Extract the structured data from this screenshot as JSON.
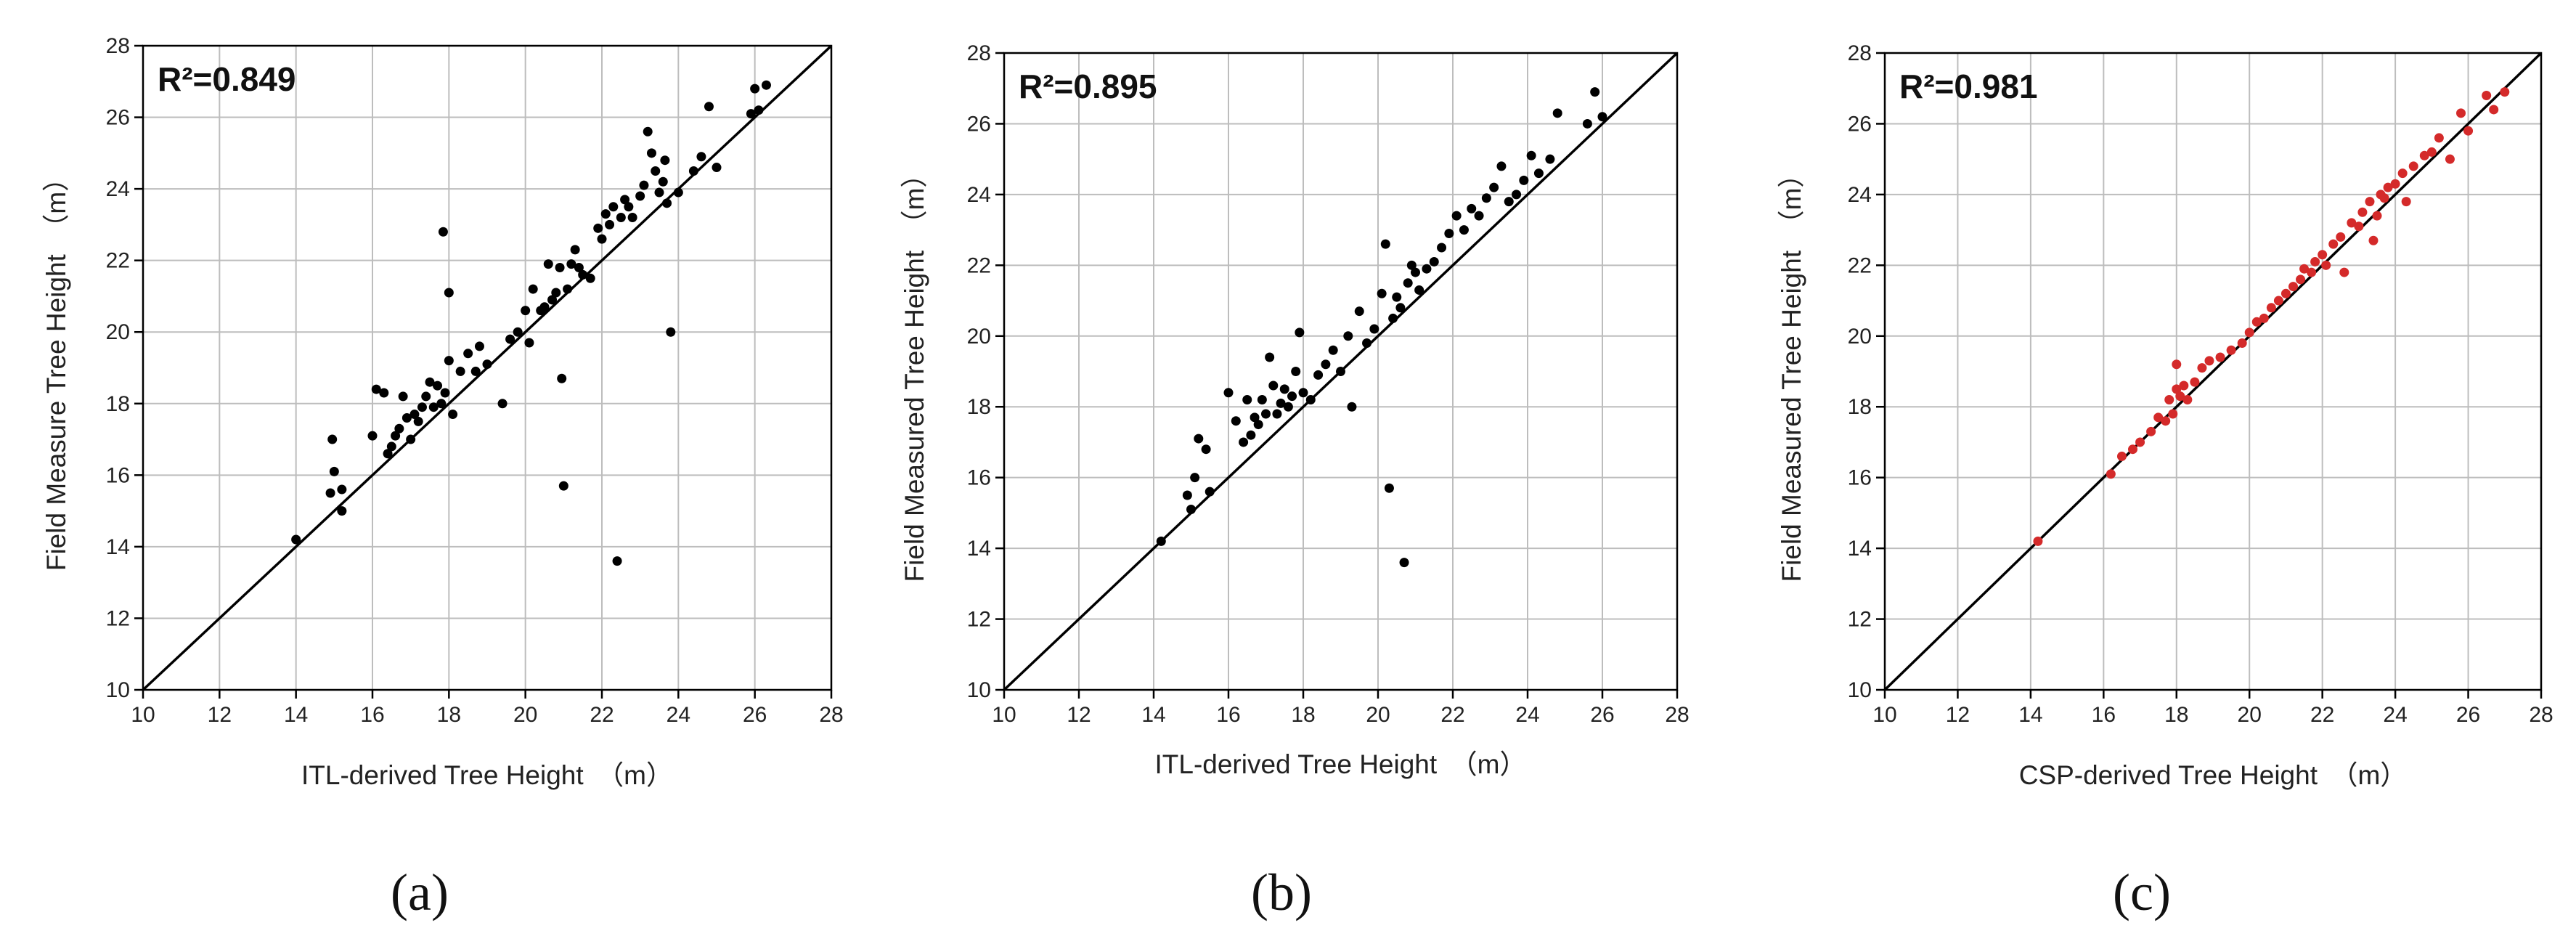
{
  "figure": {
    "panel_labels": [
      "(a)",
      "(b)",
      "(c)"
    ]
  },
  "chart_data": [
    {
      "type": "scatter",
      "panel": "(a)",
      "annotation": "R²=0.849",
      "xlabel": "ITL-derived Tree Height　（m）",
      "ylabel": "Field Measure Tree Height　（m）",
      "xlim": [
        10,
        28
      ],
      "ylim": [
        10,
        28
      ],
      "xticks": [
        "10",
        "12",
        "14",
        "16",
        "18",
        "20",
        "22",
        "24",
        "26",
        "28"
      ],
      "yticks": [
        "10",
        "12",
        "14",
        "16",
        "18",
        "20",
        "22",
        "24",
        "26",
        "28"
      ],
      "grid": true,
      "reference_line": "1:1",
      "marker_color": "#000000",
      "points": [
        [
          14.0,
          14.2
        ],
        [
          14.9,
          15.5
        ],
        [
          14.95,
          17.0
        ],
        [
          15.0,
          16.1
        ],
        [
          15.2,
          15.0
        ],
        [
          15.2,
          15.6
        ],
        [
          16.0,
          17.1
        ],
        [
          16.1,
          18.4
        ],
        [
          16.3,
          18.3
        ],
        [
          16.4,
          16.6
        ],
        [
          16.5,
          16.8
        ],
        [
          16.6,
          17.1
        ],
        [
          16.7,
          17.3
        ],
        [
          16.8,
          18.2
        ],
        [
          16.9,
          17.6
        ],
        [
          17.0,
          17.0
        ],
        [
          17.1,
          17.7
        ],
        [
          17.2,
          17.5
        ],
        [
          17.3,
          17.9
        ],
        [
          17.4,
          18.2
        ],
        [
          17.5,
          18.6
        ],
        [
          17.6,
          17.9
        ],
        [
          17.7,
          18.5
        ],
        [
          17.8,
          18.0
        ],
        [
          17.85,
          22.8
        ],
        [
          17.9,
          18.3
        ],
        [
          18.0,
          21.1
        ],
        [
          18.0,
          19.2
        ],
        [
          18.1,
          17.7
        ],
        [
          18.3,
          18.9
        ],
        [
          18.5,
          19.4
        ],
        [
          18.7,
          18.9
        ],
        [
          18.8,
          19.6
        ],
        [
          19.0,
          19.1
        ],
        [
          19.4,
          18.0
        ],
        [
          19.6,
          19.8
        ],
        [
          19.8,
          20.0
        ],
        [
          20.0,
          20.6
        ],
        [
          20.1,
          19.7
        ],
        [
          20.2,
          21.2
        ],
        [
          20.4,
          20.6
        ],
        [
          20.5,
          20.7
        ],
        [
          20.6,
          21.9
        ],
        [
          20.7,
          20.9
        ],
        [
          20.8,
          21.1
        ],
        [
          20.9,
          21.8
        ],
        [
          20.95,
          18.7
        ],
        [
          21.0,
          15.7
        ],
        [
          21.1,
          21.2
        ],
        [
          21.2,
          21.9
        ],
        [
          21.3,
          22.3
        ],
        [
          21.4,
          21.8
        ],
        [
          21.5,
          21.6
        ],
        [
          21.7,
          21.5
        ],
        [
          21.9,
          22.9
        ],
        [
          22.0,
          22.6
        ],
        [
          22.1,
          23.3
        ],
        [
          22.2,
          23.0
        ],
        [
          22.3,
          23.5
        ],
        [
          22.4,
          13.6
        ],
        [
          22.5,
          23.2
        ],
        [
          22.6,
          23.7
        ],
        [
          22.7,
          23.5
        ],
        [
          22.8,
          23.2
        ],
        [
          23.0,
          23.8
        ],
        [
          23.1,
          24.1
        ],
        [
          23.2,
          25.6
        ],
        [
          23.3,
          25.0
        ],
        [
          23.4,
          24.5
        ],
        [
          23.5,
          23.9
        ],
        [
          23.6,
          24.2
        ],
        [
          23.65,
          24.8
        ],
        [
          23.7,
          23.6
        ],
        [
          23.8,
          20.0
        ],
        [
          24.0,
          23.9
        ],
        [
          24.4,
          24.5
        ],
        [
          24.6,
          24.9
        ],
        [
          24.8,
          26.3
        ],
        [
          25.0,
          24.6
        ],
        [
          25.9,
          26.1
        ],
        [
          26.0,
          26.8
        ],
        [
          26.1,
          26.2
        ],
        [
          26.3,
          26.9
        ]
      ]
    },
    {
      "type": "scatter",
      "panel": "(b)",
      "annotation": "R²=0.895",
      "xlabel": "ITL-derived Tree Height　（m）",
      "ylabel": "Field Measured Tree Height　（m）",
      "xlim": [
        10,
        28
      ],
      "ylim": [
        10,
        28
      ],
      "xticks": [
        "10",
        "12",
        "14",
        "16",
        "18",
        "20",
        "22",
        "24",
        "26",
        "28"
      ],
      "yticks": [
        "10",
        "12",
        "14",
        "16",
        "18",
        "20",
        "22",
        "24",
        "26",
        "28"
      ],
      "grid": true,
      "reference_line": "1:1",
      "marker_color": "#000000",
      "points": [
        [
          14.2,
          14.2
        ],
        [
          14.9,
          15.5
        ],
        [
          15.0,
          15.1
        ],
        [
          15.1,
          16.0
        ],
        [
          15.2,
          17.1
        ],
        [
          15.4,
          16.8
        ],
        [
          15.5,
          15.6
        ],
        [
          16.0,
          18.4
        ],
        [
          16.2,
          17.6
        ],
        [
          16.4,
          17.0
        ],
        [
          16.5,
          18.2
        ],
        [
          16.6,
          17.2
        ],
        [
          16.7,
          17.7
        ],
        [
          16.8,
          17.5
        ],
        [
          16.9,
          18.2
        ],
        [
          17.0,
          17.8
        ],
        [
          17.1,
          19.4
        ],
        [
          17.2,
          18.6
        ],
        [
          17.3,
          17.8
        ],
        [
          17.4,
          18.1
        ],
        [
          17.5,
          18.5
        ],
        [
          17.6,
          18.0
        ],
        [
          17.7,
          18.3
        ],
        [
          17.8,
          19.0
        ],
        [
          17.9,
          20.1
        ],
        [
          18.0,
          18.4
        ],
        [
          18.2,
          18.2
        ],
        [
          18.4,
          18.9
        ],
        [
          18.6,
          19.2
        ],
        [
          18.8,
          19.6
        ],
        [
          19.0,
          19.0
        ],
        [
          19.2,
          20.0
        ],
        [
          19.3,
          18.0
        ],
        [
          19.5,
          20.7
        ],
        [
          19.7,
          19.8
        ],
        [
          19.9,
          20.2
        ],
        [
          20.1,
          21.2
        ],
        [
          20.2,
          22.6
        ],
        [
          20.3,
          15.7
        ],
        [
          20.4,
          20.5
        ],
        [
          20.5,
          21.1
        ],
        [
          20.6,
          20.8
        ],
        [
          20.7,
          13.6
        ],
        [
          20.8,
          21.5
        ],
        [
          20.9,
          22.0
        ],
        [
          21.0,
          21.8
        ],
        [
          21.1,
          21.3
        ],
        [
          21.3,
          21.9
        ],
        [
          21.5,
          22.1
        ],
        [
          21.7,
          22.5
        ],
        [
          21.9,
          22.9
        ],
        [
          22.1,
          23.4
        ],
        [
          22.3,
          23.0
        ],
        [
          22.5,
          23.6
        ],
        [
          22.7,
          23.4
        ],
        [
          22.9,
          23.9
        ],
        [
          23.1,
          24.2
        ],
        [
          23.3,
          24.8
        ],
        [
          23.5,
          23.8
        ],
        [
          23.7,
          24.0
        ],
        [
          23.9,
          24.4
        ],
        [
          24.1,
          25.1
        ],
        [
          24.3,
          24.6
        ],
        [
          24.6,
          25.0
        ],
        [
          24.8,
          26.3
        ],
        [
          25.6,
          26.0
        ],
        [
          25.8,
          26.9
        ],
        [
          26.0,
          26.2
        ]
      ]
    },
    {
      "type": "scatter",
      "panel": "(c)",
      "annotation": "R²=0.981",
      "xlabel": "CSP-derived Tree Height　（m）",
      "ylabel": "Field Measured Tree Height　（m）",
      "xlim": [
        10,
        28
      ],
      "ylim": [
        10,
        28
      ],
      "xticks": [
        "10",
        "12",
        "14",
        "16",
        "18",
        "20",
        "22",
        "24",
        "26",
        "28"
      ],
      "yticks": [
        "10",
        "12",
        "14",
        "16",
        "18",
        "20",
        "22",
        "24",
        "26",
        "28"
      ],
      "grid": true,
      "reference_line": "1:1",
      "marker_color": "#d42a2a",
      "points": [
        [
          14.2,
          14.2
        ],
        [
          16.2,
          16.1
        ],
        [
          16.5,
          16.6
        ],
        [
          16.8,
          16.8
        ],
        [
          17.0,
          17.0
        ],
        [
          17.3,
          17.3
        ],
        [
          17.5,
          17.7
        ],
        [
          17.7,
          17.6
        ],
        [
          17.8,
          18.2
        ],
        [
          17.9,
          17.8
        ],
        [
          18.0,
          18.5
        ],
        [
          18.0,
          19.2
        ],
        [
          18.1,
          18.3
        ],
        [
          18.2,
          18.6
        ],
        [
          18.3,
          18.2
        ],
        [
          18.5,
          18.7
        ],
        [
          18.7,
          19.1
        ],
        [
          18.9,
          19.3
        ],
        [
          19.2,
          19.4
        ],
        [
          19.5,
          19.6
        ],
        [
          19.8,
          19.8
        ],
        [
          20.0,
          20.1
        ],
        [
          20.2,
          20.4
        ],
        [
          20.4,
          20.5
        ],
        [
          20.6,
          20.8
        ],
        [
          20.8,
          21.0
        ],
        [
          21.0,
          21.2
        ],
        [
          21.2,
          21.4
        ],
        [
          21.4,
          21.6
        ],
        [
          21.5,
          21.9
        ],
        [
          21.7,
          21.8
        ],
        [
          21.8,
          22.1
        ],
        [
          22.0,
          22.3
        ],
        [
          22.1,
          22.0
        ],
        [
          22.3,
          22.6
        ],
        [
          22.5,
          22.8
        ],
        [
          22.6,
          21.8
        ],
        [
          22.8,
          23.2
        ],
        [
          23.0,
          23.1
        ],
        [
          23.1,
          23.5
        ],
        [
          23.3,
          23.8
        ],
        [
          23.4,
          22.7
        ],
        [
          23.5,
          23.4
        ],
        [
          23.6,
          24.0
        ],
        [
          23.7,
          23.9
        ],
        [
          23.8,
          24.2
        ],
        [
          24.0,
          24.3
        ],
        [
          24.2,
          24.6
        ],
        [
          24.3,
          23.8
        ],
        [
          24.5,
          24.8
        ],
        [
          24.8,
          25.1
        ],
        [
          25.0,
          25.2
        ],
        [
          25.2,
          25.6
        ],
        [
          25.5,
          25.0
        ],
        [
          25.8,
          26.3
        ],
        [
          26.0,
          25.8
        ],
        [
          26.5,
          26.8
        ],
        [
          26.7,
          26.4
        ],
        [
          27.0,
          26.9
        ]
      ]
    }
  ]
}
